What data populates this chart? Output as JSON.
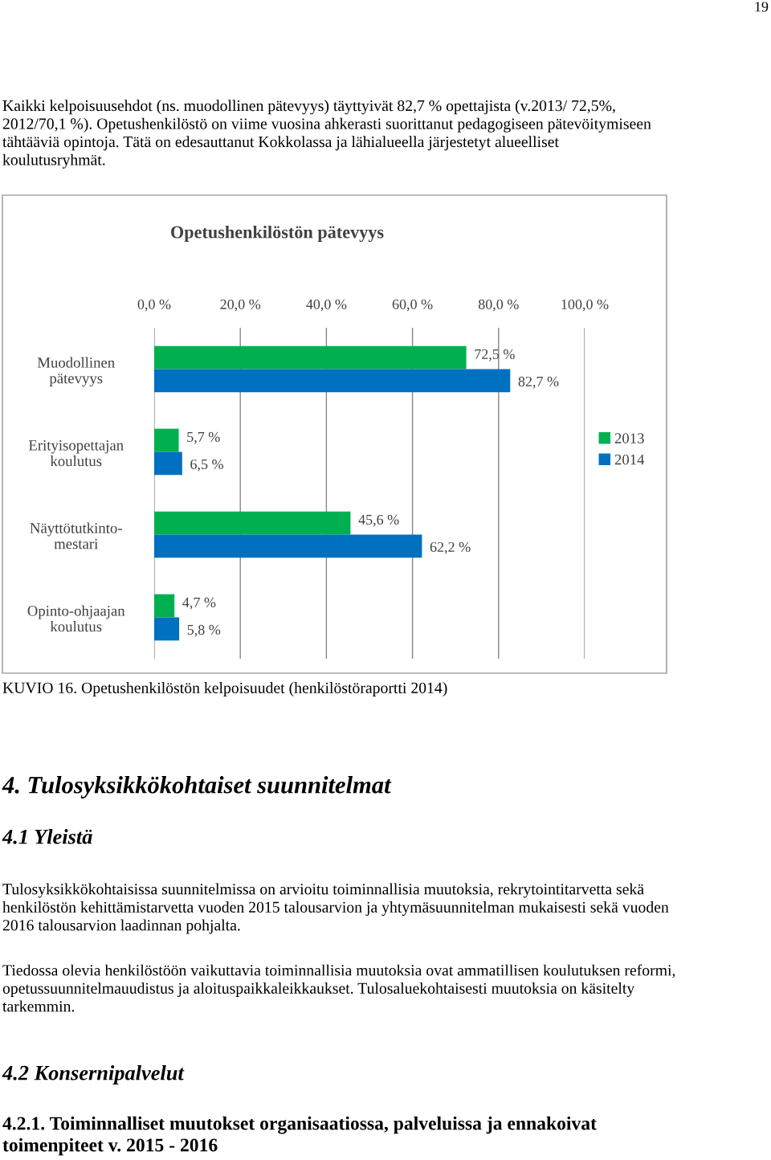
{
  "chart_data": {
    "type": "bar",
    "orientation": "horizontal",
    "title": "Opetushenkilöstön pätevyys",
    "categories": [
      "Muodollinen\npätevyys",
      "Erityisopettajan\nkoulutus",
      "Näyttötutkinto-\nmestari",
      "Opinto-ohjaajan\nkoulutus"
    ],
    "series": [
      {
        "name": "2013",
        "color": "#00b050",
        "values": [
          72.5,
          5.7,
          45.6,
          4.7
        ],
        "value_labels": [
          "72,5 %",
          "5,7 %",
          "45,6 %",
          "4,7 %"
        ]
      },
      {
        "name": "2014",
        "color": "#0070c0",
        "values": [
          82.7,
          6.5,
          62.2,
          5.8
        ],
        "value_labels": [
          "82,7 %",
          "6,5 %",
          "62,2 %",
          "5,8 %"
        ]
      }
    ],
    "xlim": [
      0,
      100
    ],
    "xticks": [
      {
        "value": 0,
        "label": "0,0 %"
      },
      {
        "value": 20,
        "label": "20,0 %"
      },
      {
        "value": 40,
        "label": "40,0 %"
      },
      {
        "value": 60,
        "label": "60,0 %"
      },
      {
        "value": 80,
        "label": "80,0 %"
      },
      {
        "value": 100,
        "label": "100,0 %"
      }
    ],
    "grid": "x",
    "legend": "right",
    "annotations": [
      "19",
      "Kaikki kelpoisuusehdot (ns. muodollinen pätevyys) täyttyivät 82,7 % opettajista (v.2013/ 72,5%,\n2012/70,1 %). Opetushenkilöstö on viime vuosina ahkerasti suorittanut pedagogiseen pätevöitymiseen\ntähtääviä opintoja. Tätä on edesauttanut Kokkolassa ja lähialueella järjestetyt alueelliset\nkoulutusryhmät.",
      "KUVIO 16. Opetushenkilöstön kelpoisuudet (henkilöstöraportti 2014)",
      "4. Tulosyksikkökohtaiset suunnitelmat",
      "4.1 Yleistä",
      "Tulosyksikkökohtaisissa suunnitelmissa on arvioitu toiminnallisia muutoksia, rekrytointitarvetta sekä\nhenkilöstön kehittämistarvetta vuoden 2015 talousarvion ja yhtymäsuunnitelman mukaisesti sekä vuoden\n2016 talousarvion laadinnan pohjalta.",
      "Tiedossa olevia henkilöstöön vaikuttavia toiminnallisia muutoksia ovat ammatillisen koulutuksen reformi,\nopetussuunnitelmauudistus ja aloituspaikkaleikkaukset. Tulosaluekohtaisesti muutoksia on käsitelty\ntarkemmin.",
      "4.2 Konsernipalvelut",
      "4.2.1. Toiminnalliset muutokset organisaatiossa, palveluissa ja ennakoivat\ntoimenpiteet v. 2015 - 2016"
    ]
  }
}
